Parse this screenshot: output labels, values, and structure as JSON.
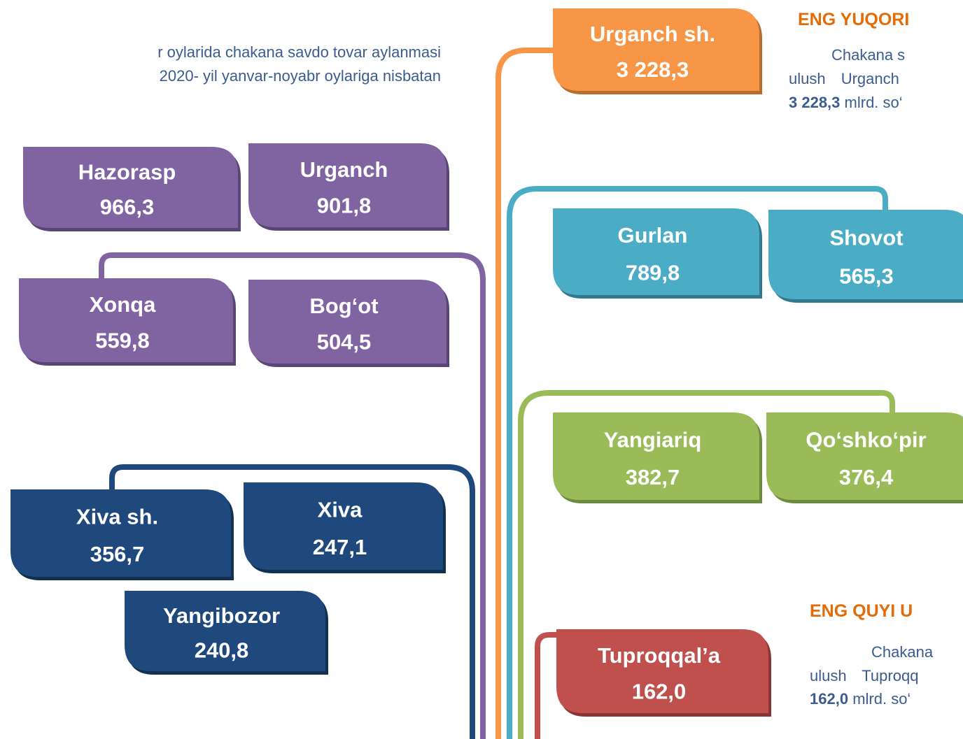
{
  "intro": [
    "r oylarida chakana savdo tovar aylanmasi",
    "2020- yil yanvar-noyabr oylariga nisbatan"
  ],
  "districts": [
    {
      "name": "Urganch sh.",
      "value": "3 228,3"
    },
    {
      "name": "Hazorasp",
      "value": "966,3"
    },
    {
      "name": "Urganch",
      "value": "901,8"
    },
    {
      "name": "Xonqa",
      "value": "559,8"
    },
    {
      "name": "Bog‘ot",
      "value": "504,5"
    },
    {
      "name": "Gurlan",
      "value": "789,8"
    },
    {
      "name": "Shovot",
      "value": "565,3"
    },
    {
      "name": "Yangiariq",
      "value": "382,7"
    },
    {
      "name": "Qo‘shko‘pir",
      "value": "376,4"
    },
    {
      "name": "Xiva sh.",
      "value": "356,7"
    },
    {
      "name": "Xiva",
      "value": "247,1"
    },
    {
      "name": "Yangibozor",
      "value": "240,8"
    },
    {
      "name": "Tuproqqal’a",
      "value": "162,0"
    }
  ],
  "highest": {
    "heading": "ENG YUQORI",
    "lines": [
      "Chakana s",
      "ulush Urganch"
    ],
    "value": "3 228,3",
    "unit": "mlrd. so‘"
  },
  "lowest": {
    "heading": "ENG QUYI U",
    "lines": [
      "Chakana",
      "ulush Tuproqq"
    ],
    "value": "162,0",
    "unit": "mlrd. so‘"
  }
}
